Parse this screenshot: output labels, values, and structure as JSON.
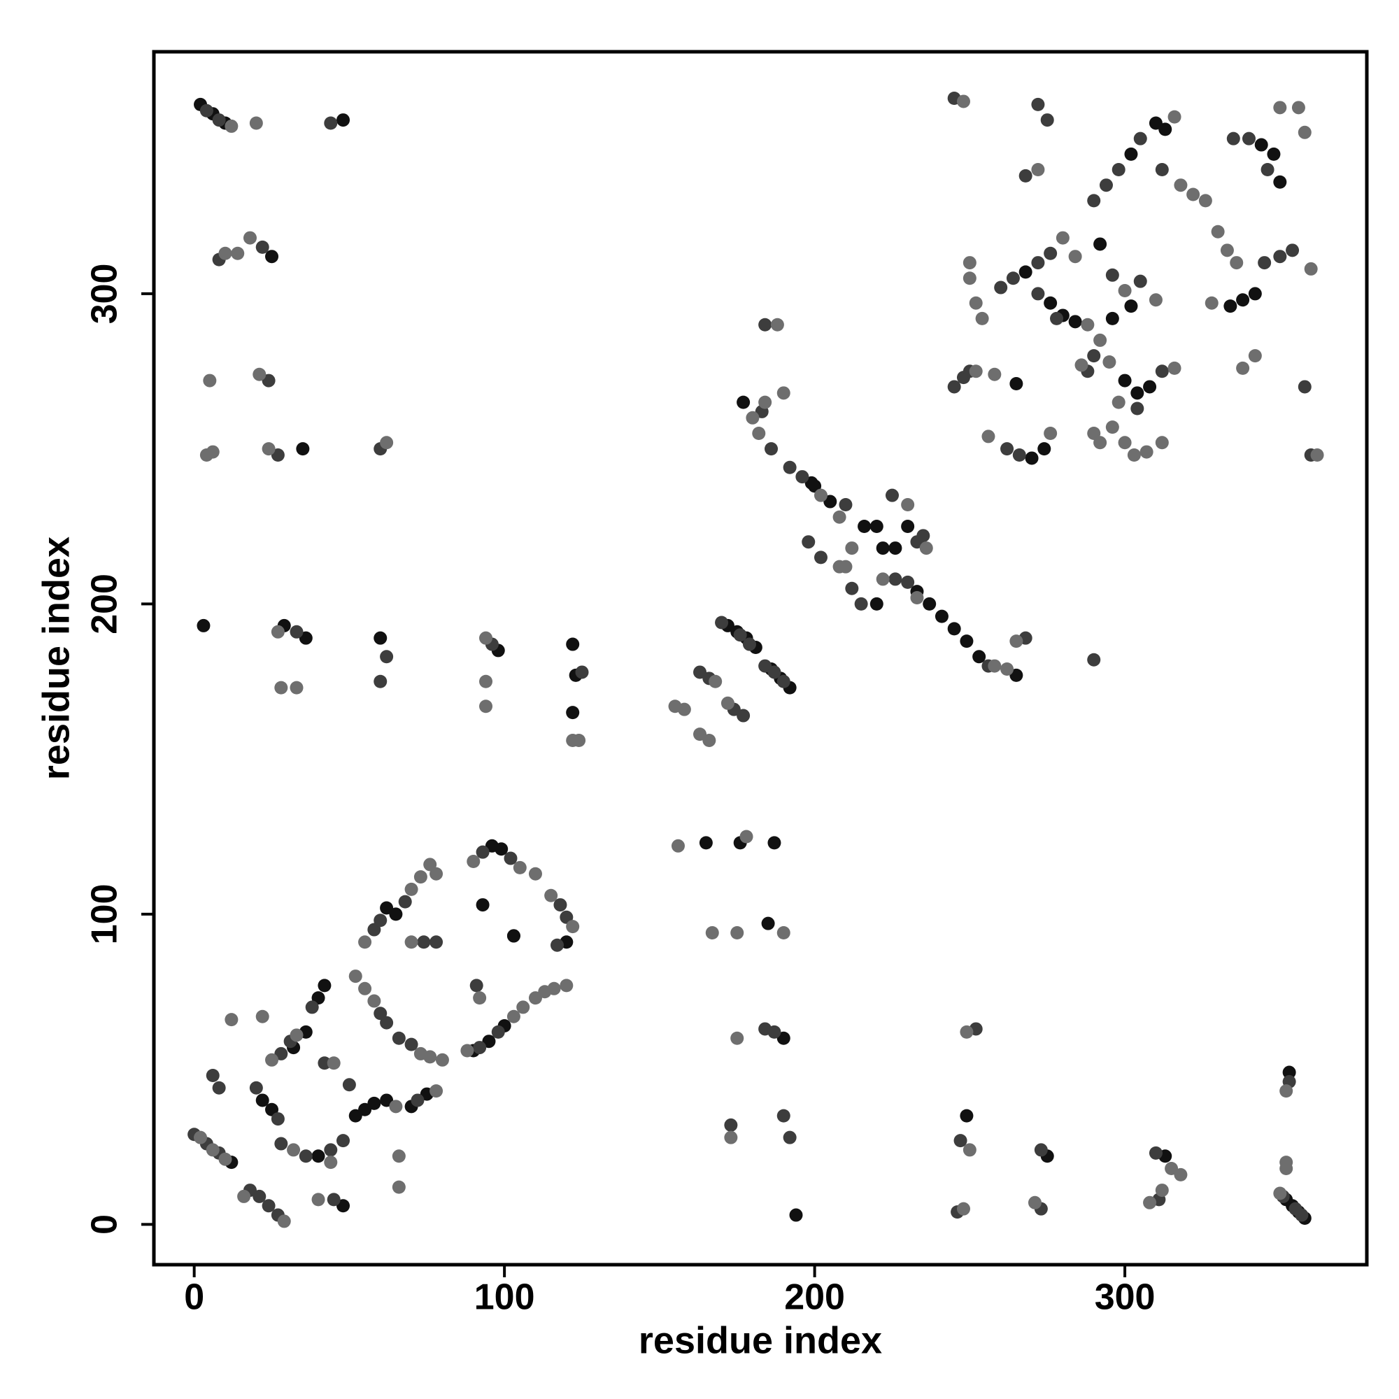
{
  "chart_data": {
    "type": "scatter",
    "x_label": "residue index",
    "y_label": "residue index",
    "xlim": [
      -13,
      378
    ],
    "ylim": [
      -13,
      378
    ],
    "xticks": [
      0,
      100,
      200,
      300
    ],
    "yticks": [
      0,
      100,
      200,
      300
    ],
    "series": [
      {
        "color": "#111111",
        "x": [
          2,
          6,
          10,
          48,
          25,
          35,
          3,
          29,
          36,
          60,
          98,
          122,
          123,
          122,
          172,
          175,
          178,
          181,
          186,
          189,
          192,
          165,
          176,
          187,
          185,
          190,
          194,
          249,
          275,
          313,
          353,
          352,
          354,
          356,
          358,
          12,
          22,
          25,
          32,
          36,
          40,
          42,
          40,
          48,
          52,
          55,
          58,
          62,
          62,
          65,
          70,
          75,
          90,
          95,
          100,
          103,
          93,
          103,
          96,
          99,
          120,
          200,
          205,
          220,
          216,
          222,
          226,
          230,
          220,
          233,
          237,
          241,
          245,
          249,
          253,
          265,
          302,
          310,
          313,
          344,
          348,
          350,
          338,
          334,
          342,
          276,
          280,
          284,
          292,
          302,
          300,
          304,
          308,
          296,
          268,
          270,
          274,
          265,
          177,
          199
        ],
        "values": [
          361,
          358,
          355,
          356,
          312,
          250,
          193,
          193,
          189,
          189,
          185,
          187,
          177,
          165,
          193,
          191,
          189,
          186,
          179,
          176,
          173,
          123,
          123,
          123,
          97,
          60,
          3,
          35,
          22,
          22,
          49,
          8,
          6,
          4,
          2,
          20,
          40,
          37,
          57,
          62,
          73,
          77,
          22,
          6,
          35,
          37,
          39,
          40,
          102,
          100,
          38,
          42,
          56,
          59,
          64,
          93,
          103,
          93,
          122,
          121,
          91,
          238,
          233,
          225,
          225,
          218,
          218,
          225,
          200,
          204,
          200,
          196,
          192,
          188,
          183,
          177,
          345,
          355,
          353,
          348,
          345,
          336,
          298,
          296,
          300,
          297,
          293,
          291,
          316,
          296,
          272,
          268,
          270,
          292,
          307,
          247,
          250,
          271,
          265,
          239
        ]
      },
      {
        "color": "#3d3d3d",
        "x": [
          4,
          8,
          44,
          8,
          22,
          24,
          27,
          60,
          33,
          62,
          60,
          96,
          125,
          163,
          166,
          174,
          177,
          170,
          176,
          179,
          184,
          187,
          190,
          173,
          190,
          192,
          184,
          187,
          252,
          247,
          273,
          246,
          273,
          310,
          311,
          353,
          351,
          355,
          357,
          0,
          4,
          8,
          18,
          21,
          24,
          27,
          6,
          8,
          20,
          27,
          28,
          31,
          38,
          28,
          36,
          44,
          45,
          48,
          50,
          42,
          58,
          60,
          60,
          62,
          68,
          72,
          66,
          70,
          74,
          78,
          92,
          98,
          91,
          93,
          102,
          118,
          120,
          117,
          183,
          186,
          192,
          196,
          210,
          225,
          198,
          202,
          212,
          215,
          230,
          226,
          233,
          235,
          256,
          268,
          290,
          184,
          245,
          248,
          250,
          290,
          294,
          298,
          305,
          312,
          335,
          340,
          346,
          345,
          350,
          354,
          358,
          360,
          272,
          278,
          260,
          264,
          272,
          276,
          296,
          305,
          262,
          266,
          288,
          290,
          312,
          304,
          245,
          272,
          275,
          268
        ],
        "values": [
          359,
          356,
          355,
          311,
          315,
          272,
          248,
          250,
          191,
          183,
          175,
          187,
          178,
          178,
          176,
          166,
          164,
          194,
          190,
          187,
          180,
          178,
          175,
          32,
          35,
          28,
          63,
          62,
          63,
          27,
          24,
          4,
          5,
          23,
          8,
          46,
          9,
          5,
          3,
          29,
          26,
          23,
          11,
          9,
          6,
          3,
          48,
          44,
          44,
          34,
          55,
          59,
          70,
          26,
          22,
          24,
          8,
          27,
          45,
          52,
          95,
          98,
          68,
          65,
          104,
          40,
          60,
          58,
          91,
          91,
          57,
          62,
          77,
          120,
          118,
          103,
          99,
          90,
          262,
          250,
          244,
          241,
          232,
          235,
          220,
          215,
          205,
          200,
          207,
          208,
          220,
          222,
          180,
          189,
          182,
          290,
          270,
          273,
          275,
          330,
          335,
          340,
          350,
          340,
          350,
          350,
          340,
          310,
          312,
          314,
          270,
          248,
          300,
          292,
          302,
          305,
          310,
          313,
          306,
          304,
          250,
          248,
          275,
          280,
          275,
          263,
          363,
          361,
          356,
          338
        ]
      },
      {
        "color": "#6e6e6e",
        "x": [
          12,
          20,
          18,
          10,
          14,
          5,
          21,
          4,
          6,
          24,
          62,
          27,
          28,
          33,
          94,
          94,
          94,
          122,
          124,
          155,
          158,
          163,
          166,
          168,
          172,
          156,
          178,
          167,
          175,
          190,
          175,
          173,
          249,
          250,
          248,
          271,
          315,
          318,
          308,
          312,
          352,
          352,
          352,
          350,
          2,
          6,
          10,
          12,
          22,
          16,
          29,
          25,
          33,
          32,
          44,
          40,
          45,
          52,
          55,
          58,
          55,
          70,
          73,
          76,
          78,
          66,
          66,
          65,
          78,
          73,
          76,
          80,
          70,
          88,
          103,
          106,
          110,
          113,
          116,
          120,
          90,
          105,
          110,
          115,
          122,
          92,
          180,
          188,
          184,
          190,
          182,
          202,
          208,
          212,
          210,
          208,
          222,
          230,
          236,
          233,
          258,
          262,
          265,
          248,
          272,
          316,
          318,
          322,
          326,
          330,
          333,
          336,
          350,
          356,
          358,
          360,
          342,
          338,
          362,
          328,
          280,
          288,
          252,
          254,
          250,
          250,
          284,
          300,
          310,
          252,
          258,
          256,
          276,
          290,
          292,
          296,
          300,
          303,
          307,
          312,
          292,
          295,
          316,
          286,
          298
        ],
        "values": [
          354,
          355,
          318,
          313,
          313,
          272,
          274,
          248,
          249,
          250,
          252,
          191,
          173,
          173,
          189,
          175,
          167,
          156,
          156,
          167,
          166,
          158,
          156,
          175,
          168,
          122,
          125,
          94,
          94,
          94,
          60,
          28,
          62,
          24,
          5,
          7,
          18,
          16,
          7,
          11,
          43,
          20,
          18,
          10,
          28,
          24,
          21,
          66,
          67,
          9,
          1,
          53,
          61,
          24,
          20,
          8,
          52,
          80,
          76,
          72,
          91,
          108,
          112,
          116,
          113,
          12,
          22,
          38,
          43,
          55,
          54,
          53,
          91,
          56,
          67,
          70,
          73,
          75,
          76,
          77,
          117,
          115,
          113,
          106,
          96,
          73,
          260,
          290,
          265,
          268,
          255,
          235,
          228,
          218,
          212,
          212,
          208,
          232,
          218,
          202,
          180,
          179,
          188,
          362,
          340,
          357,
          335,
          332,
          330,
          320,
          314,
          310,
          360,
          360,
          352,
          308,
          280,
          276,
          248,
          297,
          318,
          290,
          297,
          292,
          310,
          305,
          312,
          301,
          298,
          275,
          274,
          254,
          255,
          255,
          252,
          257,
          252,
          248,
          249,
          252,
          285,
          278,
          276,
          277,
          265
        ]
      }
    ]
  }
}
